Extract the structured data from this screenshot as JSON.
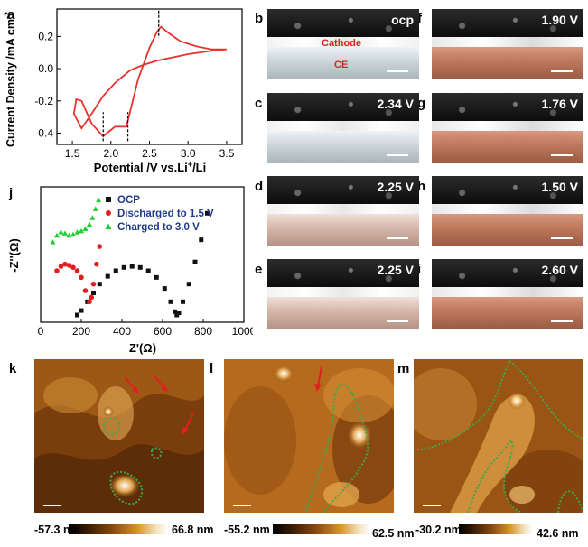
{
  "panels": {
    "a": "a",
    "b": "b",
    "c": "c",
    "d": "d",
    "e": "e",
    "f": "f",
    "g": "g",
    "h": "h",
    "i": "i",
    "j": "j",
    "k": "k",
    "l": "l",
    "m": "m"
  },
  "chart_a": {
    "type": "line",
    "xlabel": "Potential /V vs.Li",
    "xlabel_sup": "+",
    "xlabel_suffix": "/Li",
    "ylabel": "Current Density /mA cm",
    "ylabel_sup": "-2",
    "xlim": [
      1.3,
      3.7
    ],
    "ylim": [
      -0.47,
      0.37
    ],
    "xticks": [
      "1.5",
      "2.0",
      "2.5",
      "3.0",
      "3.5"
    ],
    "yticks": [
      "0.2",
      "0.0",
      "-0.2",
      "-0.4"
    ],
    "color": "#e8322e",
    "cv_x": [
      3.5,
      3.3,
      3.0,
      2.8,
      2.6,
      2.4,
      2.25,
      2.05,
      1.9,
      1.75,
      1.62,
      1.52,
      1.55,
      1.62,
      1.75,
      1.9,
      2.05,
      2.2,
      2.35,
      2.5,
      2.6,
      2.65,
      2.75,
      2.9,
      3.1,
      3.3,
      3.5
    ],
    "cv_y": [
      0.12,
      0.11,
      0.09,
      0.07,
      0.05,
      0.02,
      -0.01,
      -0.09,
      -0.17,
      -0.28,
      -0.37,
      -0.28,
      -0.19,
      -0.2,
      -0.34,
      -0.42,
      -0.36,
      -0.36,
      -0.07,
      0.13,
      0.23,
      0.26,
      0.22,
      0.17,
      0.14,
      0.12,
      0.12
    ],
    "markers_x": [
      1.9,
      2.22,
      2.62
    ]
  },
  "chart_j": {
    "type": "scatter",
    "xlabel": "Z'(Ω)",
    "ylabel": "-Z''(Ω)",
    "xlim": [
      0,
      1000
    ],
    "xticks": [
      "0",
      "200",
      "400",
      "600",
      "800",
      "1000"
    ],
    "series": [
      {
        "name": "OCP",
        "color": "#111111",
        "marker": "square",
        "x": [
          180,
          200,
          230,
          260,
          290,
          330,
          370,
          410,
          450,
          490,
          530,
          570,
          610,
          640,
          660,
          670,
          680,
          700,
          730,
          760,
          790,
          820
        ],
        "y": [
          0,
          20,
          60,
          100,
          140,
          175,
          200,
          215,
          220,
          215,
          200,
          170,
          120,
          60,
          15,
          0,
          10,
          60,
          140,
          240,
          340,
          460
        ]
      },
      {
        "name": "Discharged to 1.5  V",
        "color": "#e02020",
        "marker": "circle",
        "x": [
          80,
          100,
          120,
          140,
          160,
          180,
          200,
          220,
          240,
          250,
          260,
          275,
          290
        ],
        "y": [
          200,
          220,
          230,
          225,
          215,
          200,
          170,
          110,
          60,
          80,
          140,
          230,
          310
        ]
      },
      {
        "name": "Charged to 3.0 V",
        "color": "#22cc33",
        "marker": "triangle",
        "x": [
          60,
          80,
          100,
          120,
          140,
          160,
          180,
          200,
          220,
          240,
          255,
          270,
          285,
          300
        ],
        "y": [
          330,
          360,
          375,
          370,
          360,
          365,
          375,
          380,
          390,
          410,
          440,
          480,
          520,
          580
        ]
      }
    ]
  },
  "micro": [
    {
      "id": "b",
      "label": "ocp",
      "tint": "white"
    },
    {
      "id": "c",
      "label": "2.34 V",
      "tint": "white"
    },
    {
      "id": "d",
      "label": "2.25 V",
      "tint": "pink"
    },
    {
      "id": "e",
      "label": "2.25 V",
      "tint": "pink"
    },
    {
      "id": "f",
      "label": "1.90 V",
      "tint": "red"
    },
    {
      "id": "g",
      "label": "1.76 V",
      "tint": "red"
    },
    {
      "id": "h",
      "label": "1.50 V",
      "tint": "red"
    },
    {
      "id": "i",
      "label": "2.60 V",
      "tint": "red"
    }
  ],
  "micro_annot": {
    "cathode": "Cathode",
    "ce": "CE",
    "cathode_color": "#e02020"
  },
  "afm": [
    {
      "id": "k",
      "min": "-57.3 nm",
      "max": "66.8 nm"
    },
    {
      "id": "l",
      "min": "-55.2 nm",
      "max": "62.5 nm"
    },
    {
      "id": "m",
      "min": "-30.2 nm",
      "max": "42.6 nm"
    }
  ]
}
